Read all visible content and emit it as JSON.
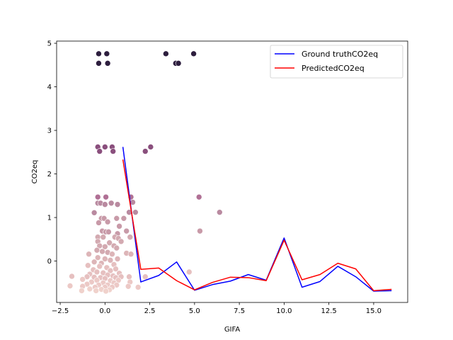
{
  "chart_data": {
    "type": "scatter",
    "xlabel": "GIFA",
    "ylabel": "CO2eq",
    "xlim": [
      -2.7,
      16.9
    ],
    "ylim": [
      -0.95,
      5.05
    ],
    "xticks": [
      -2.5,
      0.0,
      2.5,
      5.0,
      7.5,
      10.0,
      12.5,
      15.0
    ],
    "xtick_labels": [
      "−2.5",
      "0.0",
      "2.5",
      "5.0",
      "7.5",
      "10.0",
      "12.5",
      "15.0"
    ],
    "yticks": [
      0,
      1,
      2,
      3,
      4,
      5
    ],
    "ytick_labels": [
      "0",
      "1",
      "2",
      "3",
      "4",
      "5"
    ],
    "grid": false,
    "legend": {
      "location": "upper-right",
      "entries": [
        {
          "label": "Ground truthCO2eq",
          "color": "#0000ff"
        },
        {
          "label": "PredictedCO2eq",
          "color": "#ff0000"
        }
      ]
    },
    "line_series": [
      {
        "name": "Ground truthCO2eq",
        "color": "#0000ff",
        "x": [
          1,
          2,
          3,
          4,
          5,
          6,
          7,
          8,
          9,
          10,
          11,
          12,
          13,
          14,
          15,
          16
        ],
        "y": [
          2.62,
          -0.48,
          -0.33,
          -0.02,
          -0.67,
          -0.54,
          -0.46,
          -0.31,
          -0.44,
          0.53,
          -0.6,
          -0.47,
          -0.12,
          -0.36,
          -0.69,
          -0.68
        ]
      },
      {
        "name": "PredictedCO2eq",
        "color": "#ff0000",
        "x": [
          1,
          2,
          3,
          4,
          5,
          6,
          7,
          8,
          9,
          10,
          11,
          12,
          13,
          14,
          15,
          16
        ],
        "y": [
          2.33,
          -0.19,
          -0.16,
          -0.45,
          -0.66,
          -0.49,
          -0.37,
          -0.38,
          -0.45,
          0.48,
          -0.43,
          -0.31,
          -0.05,
          -0.18,
          -0.68,
          -0.65
        ]
      }
    ],
    "scatter_points": [
      {
        "x": -0.35,
        "y": 4.76,
        "c": "#2d1e3e"
      },
      {
        "x": 0.1,
        "y": 4.76,
        "c": "#2d1e3e"
      },
      {
        "x": 3.4,
        "y": 4.76,
        "c": "#2d1e3e"
      },
      {
        "x": 4.95,
        "y": 4.76,
        "c": "#2d1e3e"
      },
      {
        "x": -0.35,
        "y": 4.54,
        "c": "#2d1e3e"
      },
      {
        "x": 0.15,
        "y": 4.54,
        "c": "#2d1e3e"
      },
      {
        "x": 3.95,
        "y": 4.54,
        "c": "#2d1e3e"
      },
      {
        "x": 4.1,
        "y": 4.54,
        "c": "#2d1e3e"
      },
      {
        "x": -0.4,
        "y": 2.62,
        "c": "#8a4f7d"
      },
      {
        "x": -0.3,
        "y": 2.52,
        "c": "#8a4f7d"
      },
      {
        "x": 0.0,
        "y": 2.62,
        "c": "#8a4f7d"
      },
      {
        "x": 0.4,
        "y": 2.62,
        "c": "#8a4f7d"
      },
      {
        "x": 0.45,
        "y": 2.52,
        "c": "#8a4f7d"
      },
      {
        "x": 2.25,
        "y": 2.52,
        "c": "#8a4f7d"
      },
      {
        "x": 2.55,
        "y": 2.62,
        "c": "#8a4f7d"
      },
      {
        "x": 5.25,
        "y": 1.47,
        "c": "#b07095"
      },
      {
        "x": 6.4,
        "y": 1.12,
        "c": "#b98aa0"
      },
      {
        "x": 5.3,
        "y": 0.69,
        "c": "#c89aa8"
      },
      {
        "x": 4.7,
        "y": -0.25,
        "c": "#e6c0c0"
      },
      {
        "x": -0.4,
        "y": 1.47,
        "c": "#b07095"
      },
      {
        "x": 0.05,
        "y": 1.47,
        "c": "#b07095"
      },
      {
        "x": -0.4,
        "y": 1.33,
        "c": "#b98aa0"
      },
      {
        "x": -0.25,
        "y": 1.33,
        "c": "#b98aa0"
      },
      {
        "x": 0.0,
        "y": 1.3,
        "c": "#b98aa0"
      },
      {
        "x": 0.35,
        "y": 1.33,
        "c": "#b98aa0"
      },
      {
        "x": -0.6,
        "y": 1.11,
        "c": "#b98aa0"
      },
      {
        "x": 1.45,
        "y": 1.47,
        "c": "#b07095"
      },
      {
        "x": 1.55,
        "y": 1.35,
        "c": "#b98aa0"
      },
      {
        "x": 1.35,
        "y": 1.12,
        "c": "#b98aa0"
      },
      {
        "x": 1.7,
        "y": 1.12,
        "c": "#b98aa0"
      },
      {
        "x": 0.7,
        "y": 1.3,
        "c": "#b98aa0"
      },
      {
        "x": 0.65,
        "y": 0.98,
        "c": "#c89aa8"
      },
      {
        "x": 1.05,
        "y": 0.98,
        "c": "#c89aa8"
      },
      {
        "x": -0.2,
        "y": 0.98,
        "c": "#c89aa8"
      },
      {
        "x": -0.05,
        "y": 0.98,
        "c": "#c89aa8"
      },
      {
        "x": 0.15,
        "y": 0.9,
        "c": "#c89aa8"
      },
      {
        "x": -0.35,
        "y": 0.88,
        "c": "#c89aa8"
      },
      {
        "x": 0.8,
        "y": 0.8,
        "c": "#c89aa8"
      },
      {
        "x": 1.2,
        "y": 0.69,
        "c": "#c89aa8"
      },
      {
        "x": -0.15,
        "y": 0.69,
        "c": "#c89aa8"
      },
      {
        "x": 0.05,
        "y": 0.67,
        "c": "#c89aa8"
      },
      {
        "x": 0.2,
        "y": 0.67,
        "c": "#c89aa8"
      },
      {
        "x": 0.7,
        "y": 0.63,
        "c": "#c89aa8"
      },
      {
        "x": -0.4,
        "y": 0.55,
        "c": "#d3aab1"
      },
      {
        "x": -0.1,
        "y": 0.55,
        "c": "#d3aab1"
      },
      {
        "x": 0.55,
        "y": 0.55,
        "c": "#d3aab1"
      },
      {
        "x": 0.75,
        "y": 0.52,
        "c": "#d3aab1"
      },
      {
        "x": 1.4,
        "y": 0.55,
        "c": "#d3aab1"
      },
      {
        "x": -0.4,
        "y": 0.45,
        "c": "#d3aab1"
      },
      {
        "x": 0.25,
        "y": 0.42,
        "c": "#d3aab1"
      },
      {
        "x": 0.9,
        "y": 0.45,
        "c": "#d3aab1"
      },
      {
        "x": -0.3,
        "y": 0.35,
        "c": "#d3aab1"
      },
      {
        "x": 0.0,
        "y": 0.33,
        "c": "#d3aab1"
      },
      {
        "x": 0.5,
        "y": 0.35,
        "c": "#d3aab1"
      },
      {
        "x": 0.65,
        "y": 0.3,
        "c": "#d3aab1"
      },
      {
        "x": -0.45,
        "y": 0.25,
        "c": "#d3aab1"
      },
      {
        "x": -0.15,
        "y": 0.22,
        "c": "#d3aab1"
      },
      {
        "x": 0.15,
        "y": 0.2,
        "c": "#d3aab1"
      },
      {
        "x": -0.9,
        "y": 0.16,
        "c": "#ddb5b8"
      },
      {
        "x": 0.4,
        "y": 0.16,
        "c": "#ddb5b8"
      },
      {
        "x": 1.2,
        "y": 0.18,
        "c": "#ddb5b8"
      },
      {
        "x": 1.45,
        "y": 0.16,
        "c": "#ddb5b8"
      },
      {
        "x": -0.4,
        "y": 0.08,
        "c": "#ddb5b8"
      },
      {
        "x": 0.0,
        "y": 0.05,
        "c": "#ddb5b8"
      },
      {
        "x": 0.3,
        "y": 0.02,
        "c": "#ddb5b8"
      },
      {
        "x": 0.7,
        "y": 0.05,
        "c": "#ddb5b8"
      },
      {
        "x": -0.6,
        "y": -0.02,
        "c": "#ddb5b8"
      },
      {
        "x": -0.2,
        "y": -0.05,
        "c": "#ddb5b8"
      },
      {
        "x": 0.5,
        "y": -0.08,
        "c": "#e6c0c0"
      },
      {
        "x": -0.95,
        "y": -0.1,
        "c": "#e6c0c0"
      },
      {
        "x": -0.3,
        "y": -0.12,
        "c": "#e6c0c0"
      },
      {
        "x": 0.1,
        "y": -0.15,
        "c": "#e6c0c0"
      },
      {
        "x": 0.6,
        "y": -0.18,
        "c": "#e6c0c0"
      },
      {
        "x": -0.65,
        "y": -0.2,
        "c": "#e6c0c0"
      },
      {
        "x": 0.3,
        "y": -0.22,
        "c": "#e6c0c0"
      },
      {
        "x": -0.45,
        "y": -0.25,
        "c": "#e6c0c0"
      },
      {
        "x": -0.1,
        "y": -0.27,
        "c": "#e6c0c0"
      },
      {
        "x": 0.8,
        "y": -0.28,
        "c": "#e6c0c0"
      },
      {
        "x": -0.85,
        "y": -0.3,
        "c": "#e6c0c0"
      },
      {
        "x": 0.15,
        "y": -0.32,
        "c": "#e6c0c0"
      },
      {
        "x": 0.45,
        "y": -0.34,
        "c": "#e6c0c0"
      },
      {
        "x": -1.85,
        "y": -0.35,
        "c": "#e6c0c0"
      },
      {
        "x": -1.0,
        "y": -0.36,
        "c": "#e6c0c0"
      },
      {
        "x": -0.6,
        "y": -0.37,
        "c": "#e6c0c0"
      },
      {
        "x": -0.25,
        "y": -0.38,
        "c": "#e6c0c0"
      },
      {
        "x": 0.0,
        "y": -0.4,
        "c": "#e6c0c0"
      },
      {
        "x": 0.6,
        "y": -0.38,
        "c": "#e6c0c0"
      },
      {
        "x": 0.9,
        "y": -0.36,
        "c": "#e6c0c0"
      },
      {
        "x": 1.35,
        "y": -0.36,
        "c": "#e6c0c0"
      },
      {
        "x": 2.25,
        "y": -0.36,
        "c": "#e6c0c0"
      },
      {
        "x": -1.25,
        "y": -0.42,
        "c": "#ecc9c6"
      },
      {
        "x": -0.45,
        "y": -0.44,
        "c": "#ecc9c6"
      },
      {
        "x": 0.3,
        "y": -0.45,
        "c": "#ecc9c6"
      },
      {
        "x": 0.75,
        "y": -0.44,
        "c": "#ecc9c6"
      },
      {
        "x": -0.75,
        "y": -0.48,
        "c": "#ecc9c6"
      },
      {
        "x": -0.1,
        "y": -0.5,
        "c": "#ecc9c6"
      },
      {
        "x": 0.5,
        "y": -0.5,
        "c": "#ecc9c6"
      },
      {
        "x": 1.4,
        "y": -0.48,
        "c": "#ecc9c6"
      },
      {
        "x": -1.0,
        "y": -0.53,
        "c": "#ecc9c6"
      },
      {
        "x": -0.35,
        "y": -0.55,
        "c": "#ecc9c6"
      },
      {
        "x": 0.15,
        "y": -0.55,
        "c": "#ecc9c6"
      },
      {
        "x": 0.65,
        "y": -0.55,
        "c": "#ecc9c6"
      },
      {
        "x": -1.95,
        "y": -0.57,
        "c": "#ecc9c6"
      },
      {
        "x": -1.25,
        "y": -0.58,
        "c": "#ecc9c6"
      },
      {
        "x": -0.55,
        "y": -0.6,
        "c": "#ecc9c6"
      },
      {
        "x": 0.0,
        "y": -0.6,
        "c": "#ecc9c6"
      },
      {
        "x": 0.4,
        "y": -0.6,
        "c": "#ecc9c6"
      },
      {
        "x": 1.3,
        "y": -0.58,
        "c": "#ecc9c6"
      },
      {
        "x": 1.85,
        "y": -0.6,
        "c": "#ecc9c6"
      },
      {
        "x": -0.85,
        "y": -0.64,
        "c": "#f0d2cc"
      },
      {
        "x": -0.2,
        "y": -0.65,
        "c": "#f0d2cc"
      },
      {
        "x": 0.25,
        "y": -0.66,
        "c": "#f0d2cc"
      },
      {
        "x": -1.3,
        "y": -0.68,
        "c": "#f0d2cc"
      },
      {
        "x": -0.5,
        "y": -0.68,
        "c": "#f0d2cc"
      },
      {
        "x": 0.05,
        "y": -0.69,
        "c": "#f0d2cc"
      }
    ]
  }
}
